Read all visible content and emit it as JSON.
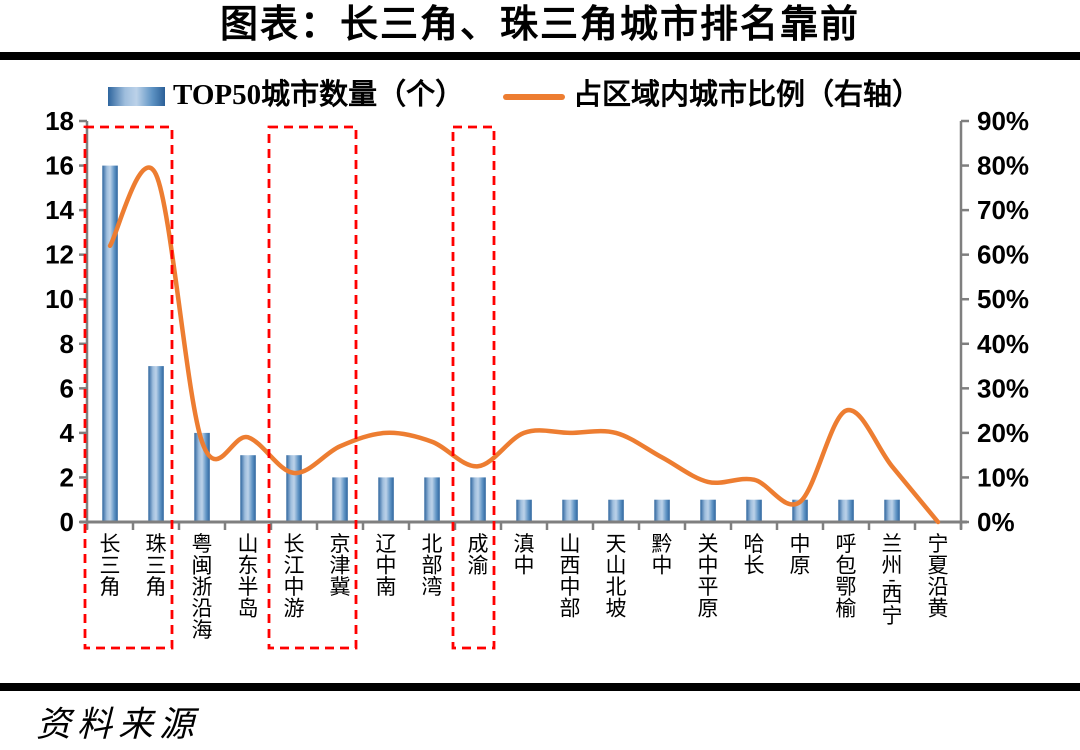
{
  "header": {
    "title": "图表：长三角、珠三角城市排名靠前"
  },
  "legend": {
    "bar_label": "TOP50城市数量（个）",
    "line_label": "占区域内城市比例（右轴）"
  },
  "footer": {
    "source_label": "资料来源"
  },
  "chart_data": {
    "type": "bar+line combo",
    "title": "图表：长三角、珠三角城市排名靠前",
    "categories": [
      "长三角",
      "珠三角",
      "粤闽浙沿海",
      "山东半岛",
      "长江中游",
      "京津冀",
      "辽中南",
      "北部湾",
      "成渝",
      "滇中",
      "山西中部",
      "天山北坡",
      "黔中",
      "关中平原",
      "哈长",
      "中原",
      "呼包鄂榆",
      "兰州-西宁",
      "宁夏沿黄"
    ],
    "series": [
      {
        "name": "TOP50城市数量（个）",
        "type": "bar",
        "axis": "left",
        "values": [
          16,
          7,
          4,
          3,
          3,
          2,
          2,
          2,
          2,
          1,
          1,
          1,
          1,
          1,
          1,
          1,
          1,
          1,
          0
        ]
      },
      {
        "name": "占区域内城市比例（右轴）",
        "type": "line",
        "axis": "right",
        "unit": "%",
        "values": [
          62,
          78,
          18,
          19,
          11,
          17,
          20,
          18,
          12.5,
          20,
          20,
          20,
          14.5,
          9,
          9.5,
          4.5,
          25,
          12.5,
          0
        ]
      }
    ],
    "left_axis": {
      "min": 0,
      "max": 18,
      "step": 2,
      "tick_labels": [
        "0",
        "2",
        "4",
        "6",
        "8",
        "10",
        "12",
        "14",
        "16",
        "18"
      ]
    },
    "right_axis": {
      "min": 0,
      "max": 90,
      "step": 10,
      "tick_labels": [
        "0%",
        "10%",
        "20%",
        "30%",
        "40%",
        "50%",
        "60%",
        "70%",
        "80%",
        "90%"
      ]
    },
    "highlighted_category_ranges": [
      {
        "from_index": 0,
        "to_index": 1
      },
      {
        "from_index": 4,
        "to_index": 5
      },
      {
        "from_index": 8,
        "to_index": 8
      }
    ],
    "grid": "off",
    "legend_position": "top",
    "colors": {
      "bar_edge": "#2E659E",
      "bar_mid": "#BCD2E9",
      "line": "#ED7D31",
      "highlight_box": "#FF0000",
      "axis": "#7F7F7F",
      "text": "#000000",
      "rule": "#000000"
    }
  }
}
